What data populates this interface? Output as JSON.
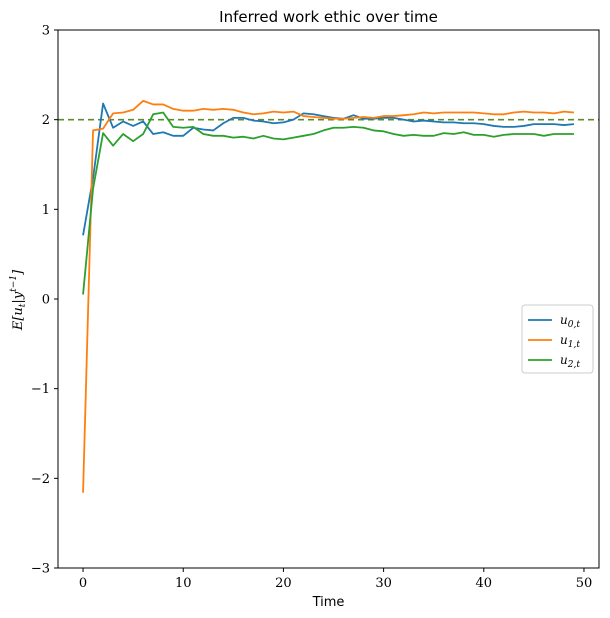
{
  "chart_data": {
    "type": "line",
    "title": "Inferred work ethic over time",
    "xlabel": "Time",
    "ylabel": "E[u_t | y^{t-1}]",
    "xlim": [
      -2.5,
      51.5
    ],
    "ylim": [
      -3,
      3
    ],
    "xticks": [
      0,
      10,
      20,
      30,
      40,
      50
    ],
    "yticks": [
      -3,
      -2,
      -1,
      0,
      1,
      2,
      3
    ],
    "xtick_labels": [
      "0",
      "10",
      "20",
      "30",
      "40",
      "50"
    ],
    "ytick_labels": [
      "−3",
      "−2",
      "−1",
      "0",
      "1",
      "2",
      "3"
    ],
    "grid": false,
    "legend_position": "center-right",
    "reference_line": {
      "y": 2.0,
      "style": "dashed",
      "color": "#5a8c2e"
    },
    "x": [
      0,
      1,
      2,
      3,
      4,
      5,
      6,
      7,
      8,
      9,
      10,
      11,
      12,
      13,
      14,
      15,
      16,
      17,
      18,
      19,
      20,
      21,
      22,
      23,
      24,
      25,
      26,
      27,
      28,
      29,
      30,
      31,
      32,
      33,
      34,
      35,
      36,
      37,
      38,
      39,
      40,
      41,
      42,
      43,
      44,
      45,
      46,
      47,
      48,
      49
    ],
    "series": [
      {
        "name": "u_{0,t}",
        "color": "#1f77b4",
        "values": [
          0.71,
          1.35,
          2.18,
          1.91,
          1.98,
          1.93,
          1.98,
          1.84,
          1.86,
          1.82,
          1.82,
          1.91,
          1.89,
          1.88,
          1.96,
          2.02,
          2.02,
          1.99,
          1.98,
          1.96,
          1.97,
          2.0,
          2.07,
          2.06,
          2.04,
          2.02,
          2.01,
          2.05,
          2.01,
          2.01,
          2.02,
          2.02,
          2.0,
          1.98,
          1.99,
          1.98,
          1.97,
          1.97,
          1.96,
          1.96,
          1.95,
          1.93,
          1.92,
          1.92,
          1.93,
          1.95,
          1.95,
          1.95,
          1.94,
          1.95
        ]
      },
      {
        "name": "u_{1,t}",
        "color": "#ff7f0e",
        "values": [
          -2.16,
          1.88,
          1.9,
          2.07,
          2.08,
          2.11,
          2.21,
          2.17,
          2.17,
          2.12,
          2.1,
          2.1,
          2.12,
          2.11,
          2.12,
          2.11,
          2.08,
          2.06,
          2.07,
          2.09,
          2.08,
          2.09,
          2.04,
          2.03,
          2.02,
          2.01,
          2.01,
          2.02,
          2.03,
          2.02,
          2.04,
          2.04,
          2.05,
          2.06,
          2.08,
          2.07,
          2.08,
          2.08,
          2.08,
          2.08,
          2.07,
          2.06,
          2.06,
          2.08,
          2.09,
          2.08,
          2.08,
          2.07,
          2.09,
          2.08
        ]
      },
      {
        "name": "u_{2,t}",
        "color": "#2ca02c",
        "values": [
          0.05,
          1.23,
          1.85,
          1.71,
          1.84,
          1.76,
          1.84,
          2.06,
          2.08,
          1.92,
          1.91,
          1.92,
          1.84,
          1.82,
          1.82,
          1.8,
          1.81,
          1.79,
          1.82,
          1.79,
          1.78,
          1.8,
          1.82,
          1.84,
          1.88,
          1.91,
          1.91,
          1.92,
          1.91,
          1.88,
          1.87,
          1.84,
          1.82,
          1.83,
          1.82,
          1.82,
          1.85,
          1.84,
          1.86,
          1.83,
          1.83,
          1.81,
          1.83,
          1.84,
          1.84,
          1.84,
          1.82,
          1.84,
          1.84,
          1.84
        ]
      }
    ]
  }
}
